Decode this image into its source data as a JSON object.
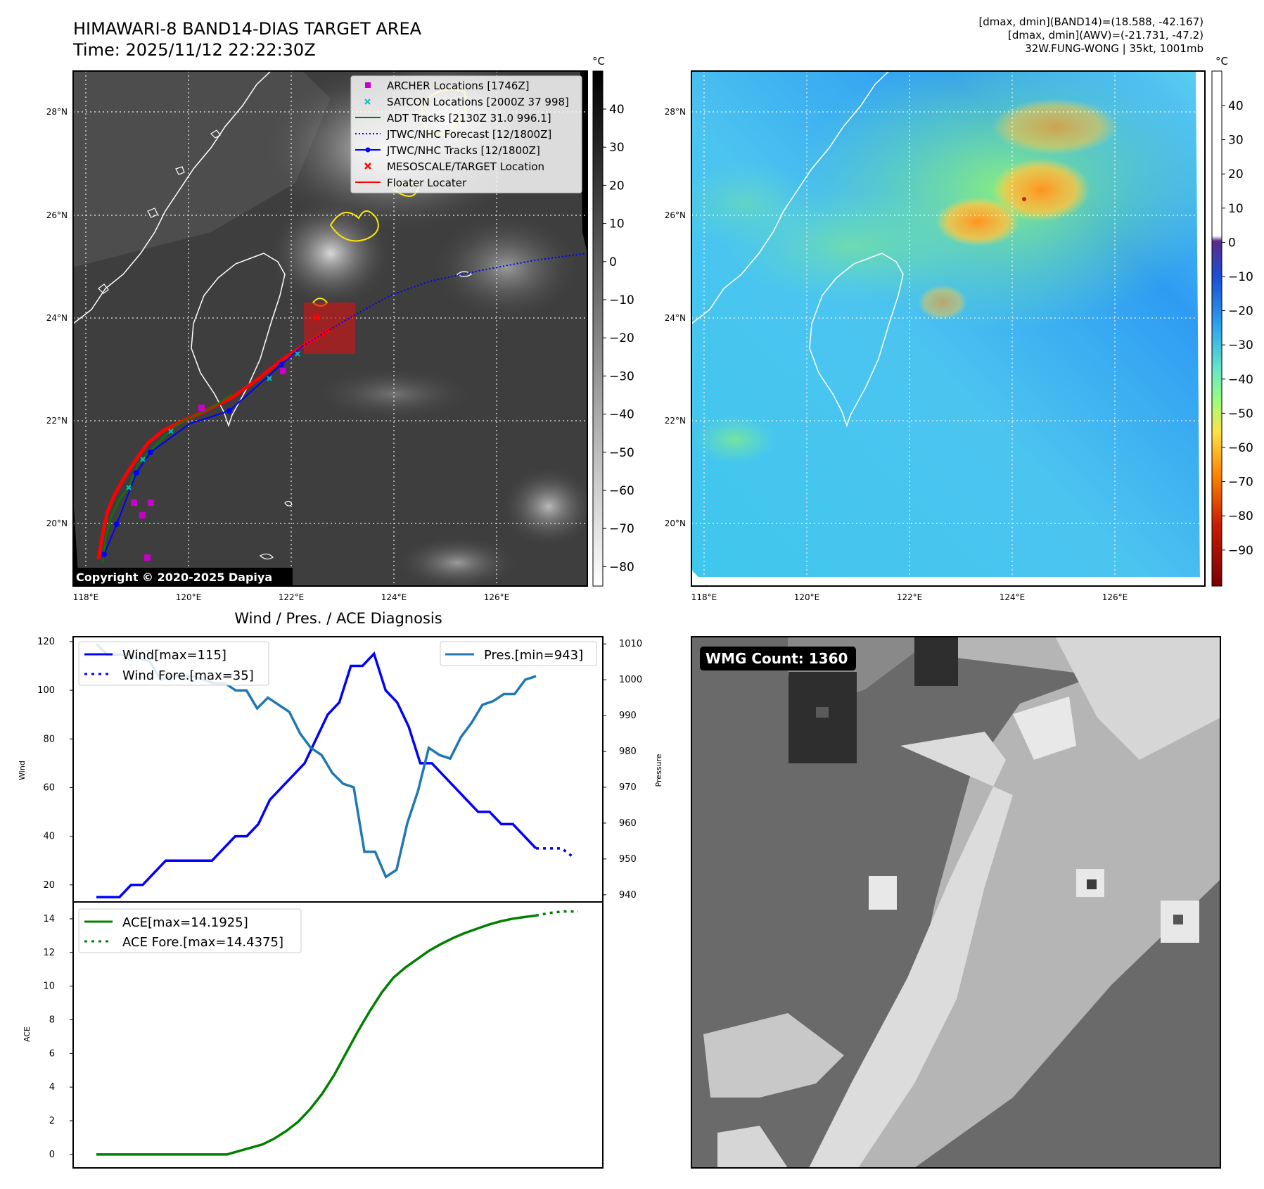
{
  "header": {
    "title_line1": "HIMAWARI-8 BAND14-DIAS TARGET AREA",
    "title_line2": "Time: 2025/11/12 22:22:30Z",
    "info_line1": "[dmax, dmin](BAND14)=(18.588, -42.167)",
    "info_line2": "[dmax, dmin](AWV)=(-21.731, -47.2)",
    "info_line3": "32W.FUNG-WONG | 35kt, 1001mb"
  },
  "colors": {
    "archer": "#c800c8",
    "satcon": "#00c0c0",
    "adt": "#008000",
    "jtwc": "#0000ff",
    "target": "#ff0000",
    "floater": "#ff0000",
    "wind": "#0000ff",
    "pres": "#1f77b4",
    "ace": "#008000"
  },
  "map_axes": {
    "lon_ticks": [
      "118°E",
      "120°E",
      "122°E",
      "124°E",
      "126°E"
    ],
    "lat_ticks": [
      "28°N",
      "26°N",
      "24°N",
      "22°N",
      "20°N"
    ]
  },
  "ir_panel": {
    "legend": [
      {
        "label": "ARCHER Locations [1746Z]",
        "symbol": "square",
        "color": "#c800c8"
      },
      {
        "label": "SATCON Locations [2000Z 37 998]",
        "symbol": "x",
        "color": "#00c0c0"
      },
      {
        "label": "ADT Tracks [2130Z 31.0 996.1]",
        "symbol": "line",
        "color": "#008000"
      },
      {
        "label": "JTWC/NHC Forecast [12/1800Z]",
        "symbol": "dotted",
        "color": "#0000ff"
      },
      {
        "label": "JTWC/NHC Tracks [12/1800Z]",
        "symbol": "dotline",
        "color": "#0000ff"
      },
      {
        "label": "MESOSCALE/TARGET Location",
        "symbol": "x",
        "color": "#ff0000"
      },
      {
        "label": "Floater Locater",
        "symbol": "line",
        "color": "#ff0000"
      }
    ],
    "copyright": "Copyright © 2020-2025 Dapiya",
    "colorbar_unit": "°C",
    "colorbar_ticks": [
      "40",
      "30",
      "20",
      "10",
      "0",
      "−10",
      "−20",
      "−30",
      "−40",
      "−50",
      "−60",
      "−70",
      "−80"
    ]
  },
  "awv_panel": {
    "colorbar_unit": "°C",
    "colorbar_ticks": [
      "40",
      "30",
      "20",
      "10",
      "0",
      "−10",
      "−20",
      "−30",
      "−40",
      "−50",
      "−60",
      "−70",
      "−80",
      "−90"
    ]
  },
  "wmg_panel": {
    "label": "WMG Count: 1360"
  },
  "chart_data": [
    {
      "type": "line",
      "title": "Wind / Pres. / ACE Diagnosis",
      "ylabel": "Wind",
      "y2label": "Pressure",
      "ylim": [
        13,
        122
      ],
      "y2lim": [
        938,
        1012
      ],
      "yticks": [
        "120",
        "100",
        "80",
        "60",
        "40",
        "20"
      ],
      "y2ticks": [
        "1010",
        "1000",
        "990",
        "980",
        "970",
        "960",
        "950",
        "940"
      ],
      "series": [
        {
          "name": "Wind[max=115]",
          "axis": "left",
          "style": "solid",
          "color": "#0000ff",
          "values": [
            15,
            15,
            15,
            20,
            20,
            25,
            30,
            30,
            30,
            30,
            30,
            35,
            40,
            40,
            45,
            55,
            60,
            65,
            70,
            80,
            90,
            95,
            110,
            110,
            115,
            100,
            95,
            85,
            70,
            70,
            65,
            60,
            55,
            50,
            50,
            45,
            45,
            40,
            35
          ]
        },
        {
          "name": "Wind Fore.[max=35]",
          "axis": "left",
          "style": "dotted",
          "color": "#0000ff",
          "values": [
            35,
            35,
            35,
            31
          ]
        },
        {
          "name": "Pres.[min=943]",
          "axis": "right",
          "style": "solid",
          "color": "#1f77b4",
          "values": [
            1010,
            1007,
            1007,
            1007,
            1006,
            1005,
            1000,
            1001,
            1001,
            1001,
            1000,
            999,
            999,
            997,
            997,
            992,
            995,
            993,
            991,
            985,
            981,
            979,
            974,
            971,
            970,
            952,
            952,
            945,
            947,
            960,
            969,
            981,
            979,
            978,
            984,
            988,
            993,
            994,
            996,
            996,
            1000,
            1001
          ]
        }
      ]
    },
    {
      "type": "line",
      "ylabel": "ACE",
      "ylim": [
        -0.8,
        15
      ],
      "yticks": [
        "14",
        "12",
        "10",
        "8",
        "6",
        "4",
        "2",
        "0"
      ],
      "series": [
        {
          "name": "ACE[max=14.1925]",
          "style": "solid",
          "color": "#008000",
          "values": [
            0,
            0,
            0,
            0,
            0,
            0,
            0,
            0,
            0,
            0,
            0,
            0,
            0.2,
            0.4,
            0.6,
            0.95,
            1.4,
            1.95,
            2.7,
            3.6,
            4.7,
            6.0,
            7.3,
            8.5,
            9.6,
            10.5,
            11.1,
            11.6,
            12.1,
            12.5,
            12.85,
            13.15,
            13.4,
            13.65,
            13.85,
            14.0,
            14.1,
            14.1925
          ]
        },
        {
          "name": "ACE Fore.[max=14.4375]",
          "style": "dotted",
          "color": "#008000",
          "values": [
            14.1925,
            14.35,
            14.4375,
            14.4375
          ]
        }
      ]
    }
  ]
}
